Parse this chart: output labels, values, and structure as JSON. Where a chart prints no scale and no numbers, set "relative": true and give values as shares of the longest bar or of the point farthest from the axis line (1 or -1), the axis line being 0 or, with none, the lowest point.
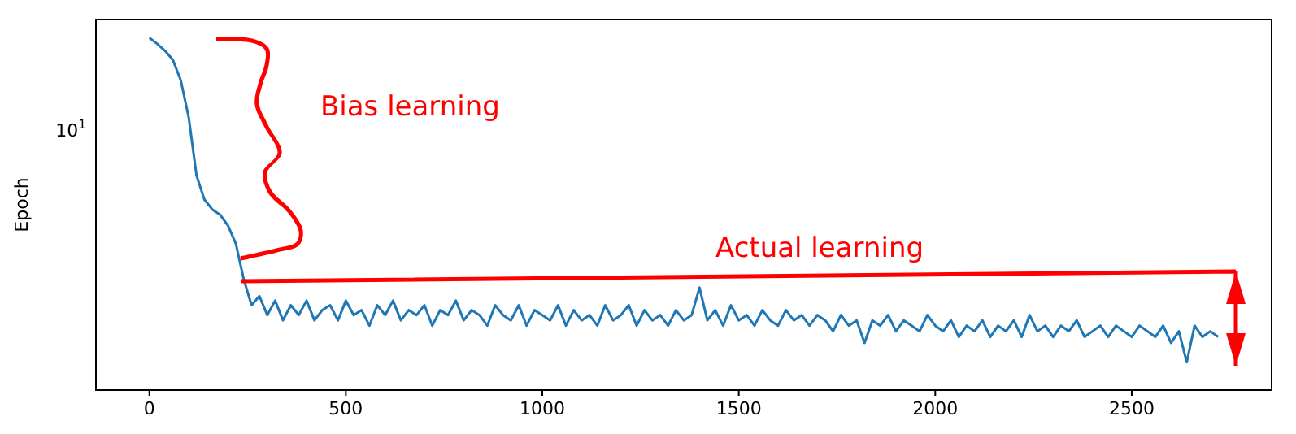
{
  "chart_data": {
    "type": "line",
    "ylabel": "Epoch",
    "relative": true,
    "xlim": [
      -136,
      2856
    ],
    "xticks": [
      0,
      500,
      1000,
      1500,
      2000,
      2500
    ],
    "grid": false,
    "annotations": [
      "10$^{1}$",
      "Bias learning",
      "Actual learning"
    ],
    "series": [
      {
        "color": "#1f77b4",
        "x": [
          0,
          20,
          40,
          60,
          80,
          100,
          120,
          140,
          160,
          180,
          200,
          220,
          240,
          260,
          280,
          300,
          320,
          340,
          360,
          380,
          400,
          420,
          440,
          460,
          480,
          500,
          520,
          540,
          560,
          580,
          600,
          620,
          640,
          660,
          680,
          700,
          720,
          740,
          760,
          780,
          800,
          820,
          840,
          860,
          880,
          900,
          920,
          940,
          960,
          980,
          1000,
          1020,
          1040,
          1060,
          1080,
          1100,
          1120,
          1140,
          1160,
          1180,
          1200,
          1220,
          1240,
          1260,
          1280,
          1300,
          1320,
          1340,
          1360,
          1380,
          1400,
          1420,
          1440,
          1460,
          1480,
          1500,
          1520,
          1540,
          1560,
          1580,
          1600,
          1620,
          1640,
          1660,
          1680,
          1700,
          1720,
          1740,
          1760,
          1780,
          1800,
          1820,
          1840,
          1860,
          1880,
          1900,
          1920,
          1940,
          1960,
          1980,
          2000,
          2020,
          2040,
          2060,
          2080,
          2100,
          2120,
          2140,
          2160,
          2180,
          2200,
          2220,
          2240,
          2260,
          2280,
          2300,
          2320,
          2340,
          2360,
          2380,
          2400,
          2420,
          2440,
          2460,
          2480,
          2500,
          2520,
          2540,
          2560,
          2580,
          2600,
          2620,
          2640,
          2660,
          2680,
          2700,
          2720
        ],
        "values": [
          1,
          0.983,
          0.963,
          0.937,
          0.879,
          0.775,
          0.609,
          0.541,
          0.513,
          0.498,
          0.467,
          0.416,
          0.315,
          0.241,
          0.267,
          0.213,
          0.254,
          0.198,
          0.241,
          0.213,
          0.254,
          0.198,
          0.227,
          0.241,
          0.198,
          0.254,
          0.213,
          0.227,
          0.183,
          0.241,
          0.213,
          0.254,
          0.198,
          0.227,
          0.213,
          0.241,
          0.183,
          0.227,
          0.213,
          0.254,
          0.198,
          0.227,
          0.213,
          0.183,
          0.241,
          0.213,
          0.198,
          0.241,
          0.183,
          0.227,
          0.213,
          0.198,
          0.241,
          0.183,
          0.227,
          0.198,
          0.213,
          0.183,
          0.241,
          0.198,
          0.213,
          0.241,
          0.183,
          0.227,
          0.198,
          0.213,
          0.183,
          0.227,
          0.198,
          0.213,
          0.291,
          0.198,
          0.227,
          0.183,
          0.241,
          0.198,
          0.213,
          0.183,
          0.227,
          0.198,
          0.183,
          0.227,
          0.198,
          0.213,
          0.183,
          0.213,
          0.198,
          0.167,
          0.213,
          0.183,
          0.198,
          0.134,
          0.198,
          0.183,
          0.213,
          0.167,
          0.198,
          0.183,
          0.167,
          0.213,
          0.183,
          0.167,
          0.198,
          0.151,
          0.183,
          0.167,
          0.198,
          0.151,
          0.183,
          0.167,
          0.198,
          0.151,
          0.213,
          0.167,
          0.183,
          0.151,
          0.183,
          0.167,
          0.198,
          0.151,
          0.167,
          0.183,
          0.151,
          0.183,
          0.167,
          0.151,
          0.183,
          0.167,
          0.151,
          0.183,
          0.134,
          0.167,
          0.079,
          0.183,
          0.151,
          0.167,
          0.151
        ]
      }
    ]
  }
}
